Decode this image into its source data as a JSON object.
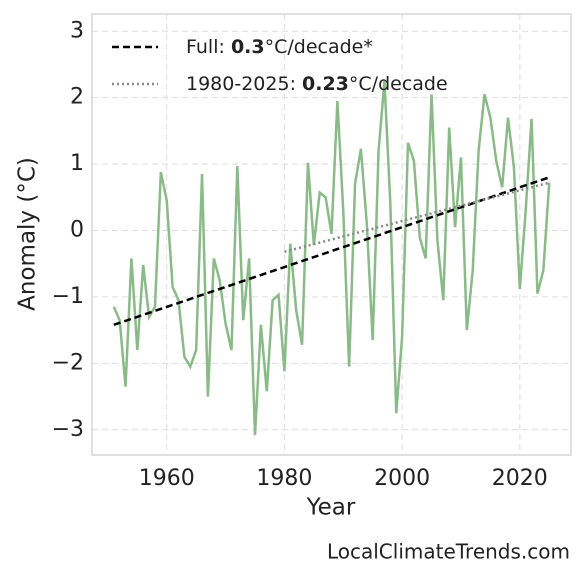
{
  "chart_data": {
    "type": "line",
    "xlabel": "Year",
    "ylabel": "Anomaly (°C)",
    "watermark": "LocalClimateTrends.com",
    "xlim": [
      1947.3,
      2028.7
    ],
    "ylim": [
      -3.38,
      3.26
    ],
    "xticks": [
      1960,
      1980,
      2000,
      2020
    ],
    "yticks": [
      {
        "value": -3,
        "label": "−3"
      },
      {
        "value": -2,
        "label": "−2"
      },
      {
        "value": -1,
        "label": "−1"
      },
      0,
      1,
      2,
      3
    ],
    "grid": true,
    "legend": "upper left",
    "series": [
      {
        "name": null,
        "color": "#8aba87",
        "style": "solid",
        "x": [
          1951,
          1952,
          1953,
          1954,
          1955,
          1956,
          1957,
          1958,
          1959,
          1960,
          1961,
          1962,
          1963,
          1964,
          1965,
          1966,
          1967,
          1968,
          1969,
          1970,
          1971,
          1972,
          1973,
          1974,
          1975,
          1976,
          1977,
          1978,
          1979,
          1980,
          1981,
          1982,
          1983,
          1984,
          1985,
          1986,
          1987,
          1988,
          1989,
          1990,
          1991,
          1992,
          1993,
          1994,
          1995,
          1996,
          1997,
          1998,
          1999,
          2000,
          2001,
          2002,
          2003,
          2004,
          2005,
          2006,
          2007,
          2008,
          2009,
          2010,
          2011,
          2012,
          2013,
          2014,
          2015,
          2016,
          2017,
          2018,
          2019,
          2020,
          2021,
          2022,
          2023,
          2024,
          2025
        ],
        "values": [
          -1.15,
          -1.35,
          -2.35,
          -0.42,
          -1.8,
          -0.52,
          -1.3,
          -1.15,
          0.88,
          0.45,
          -0.85,
          -1.05,
          -1.9,
          -2.05,
          -1.8,
          0.85,
          -2.5,
          -0.42,
          -0.75,
          -1.4,
          -1.8,
          0.97,
          -1.35,
          -0.42,
          -3.08,
          -1.42,
          -2.42,
          -1.05,
          -0.97,
          -2.12,
          -0.2,
          -1.2,
          -1.72,
          1.02,
          -0.22,
          0.57,
          0.5,
          -0.05,
          1.95,
          0.3,
          -2.05,
          0.7,
          1.23,
          0.1,
          -1.65,
          1.2,
          2.25,
          0.4,
          -2.75,
          -1.6,
          1.32,
          1.05,
          -0.1,
          -0.42,
          2.05,
          -0.15,
          -1.05,
          1.55,
          0.05,
          1.1,
          -1.5,
          -0.6,
          1.2,
          2.05,
          1.7,
          1.05,
          0.65,
          1.7,
          0.95,
          -0.88,
          0.3,
          1.68,
          -0.95,
          -0.6,
          0.72
        ]
      },
      {
        "name": "Full: 0.3°C/decade*",
        "color": "#000000",
        "style": "dashed",
        "x": [
          1951,
          2025
        ],
        "values": [
          -1.42,
          0.8
        ]
      },
      {
        "name": "1980-2025: 0.23°C/decade",
        "color": "#888888",
        "style": "dotted",
        "x": [
          1980,
          2025
        ],
        "values": [
          -0.32,
          0.72
        ]
      }
    ]
  }
}
